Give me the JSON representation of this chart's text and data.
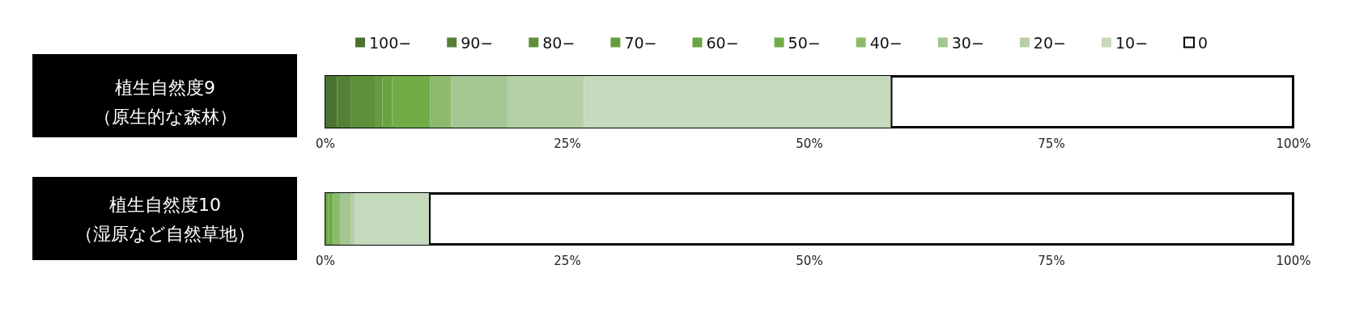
{
  "chart_data": [
    {
      "type": "bar",
      "orientation": "horizontal",
      "stacked": true,
      "categories": [
        "植生自然度9\n（原生的な森林）"
      ],
      "legend": "top",
      "grid": false,
      "xlim": [
        0,
        100
      ],
      "xticks": [
        {
          "value": 0,
          "label": "0%"
        },
        {
          "value": 25,
          "label": "25%"
        },
        {
          "value": 50,
          "label": "50%"
        },
        {
          "value": 75,
          "label": "75%"
        },
        {
          "value": 100,
          "label": "100%"
        }
      ],
      "series": [
        {
          "name": "100−",
          "color": "#4a7330",
          "values": [
            1.2
          ]
        },
        {
          "name": "90−",
          "color": "#548235",
          "values": [
            1.4
          ]
        },
        {
          "name": "80−",
          "color": "#5e8f3b",
          "values": [
            2.5
          ]
        },
        {
          "name": "70−",
          "color": "#659c3f",
          "values": [
            0.8
          ]
        },
        {
          "name": "60−",
          "color": "#6aa343",
          "values": [
            1.0
          ]
        },
        {
          "name": "50−",
          "color": "#70ad47",
          "values": [
            3.9
          ]
        },
        {
          "name": "40−",
          "color": "#8cba6c",
          "values": [
            2.2
          ]
        },
        {
          "name": "30−",
          "color": "#a3c693",
          "values": [
            5.8
          ]
        },
        {
          "name": "20−",
          "color": "#b5cfa7",
          "values": [
            7.9
          ]
        },
        {
          "name": "10−",
          "color": "#c5d9bc",
          "values": [
            31.7
          ]
        },
        {
          "name": "0",
          "color": "#ffffff",
          "values": [
            41.6
          ]
        }
      ]
    },
    {
      "type": "bar",
      "orientation": "horizontal",
      "stacked": true,
      "categories": [
        "植生自然度10\n（湿原など自然草地）"
      ],
      "grid": false,
      "xlim": [
        0,
        100
      ],
      "xticks": [
        {
          "value": 0,
          "label": "0%"
        },
        {
          "value": 25,
          "label": "25%"
        },
        {
          "value": 50,
          "label": "50%"
        },
        {
          "value": 75,
          "label": "75%"
        },
        {
          "value": 100,
          "label": "100%"
        }
      ],
      "series": [
        {
          "color": "#6aa343",
          "values": [
            0.3
          ]
        },
        {
          "color": "#70ad47",
          "values": [
            0.5
          ]
        },
        {
          "color": "#8cba6c",
          "values": [
            0.7
          ]
        },
        {
          "color": "#a3c693",
          "values": [
            1.1
          ]
        },
        {
          "color": "#b5cfa7",
          "values": [
            0.4
          ]
        },
        {
          "color": "#c5d9bc",
          "values": [
            7.7
          ]
        },
        {
          "color": "#ffffff",
          "values": [
            89.3
          ]
        }
      ]
    }
  ]
}
